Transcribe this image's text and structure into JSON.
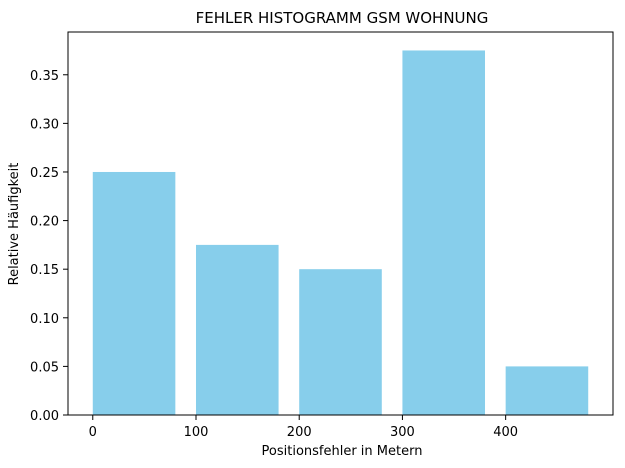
{
  "chart_data": {
    "type": "bar",
    "title": "FEHLER HISTOGRAMM GSM WOHNUNG",
    "xlabel": "Positionsfehler in Metern",
    "ylabel": "Relative Häufigkeit",
    "bins": [
      {
        "start": 0,
        "end": 80,
        "value": 0.25
      },
      {
        "start": 100,
        "end": 180,
        "value": 0.175
      },
      {
        "start": 200,
        "end": 280,
        "value": 0.15
      },
      {
        "start": 300,
        "end": 380,
        "value": 0.375
      },
      {
        "start": 400,
        "end": 480,
        "value": 0.05
      }
    ],
    "xlim": [
      -24,
      504
    ],
    "ylim": [
      0,
      0.394
    ],
    "xticks": [
      0,
      100,
      200,
      300,
      400
    ],
    "xtick_labels": [
      "0",
      "100",
      "200",
      "300",
      "400"
    ],
    "yticks": [
      0,
      0.05,
      0.1,
      0.15,
      0.2,
      0.25,
      0.3,
      0.35
    ],
    "ytick_labels": [
      "0.00",
      "0.05",
      "0.10",
      "0.15",
      "0.20",
      "0.25",
      "0.30",
      "0.35"
    ],
    "bar_color": "#87ceeb",
    "grid": false,
    "legend": "none"
  }
}
